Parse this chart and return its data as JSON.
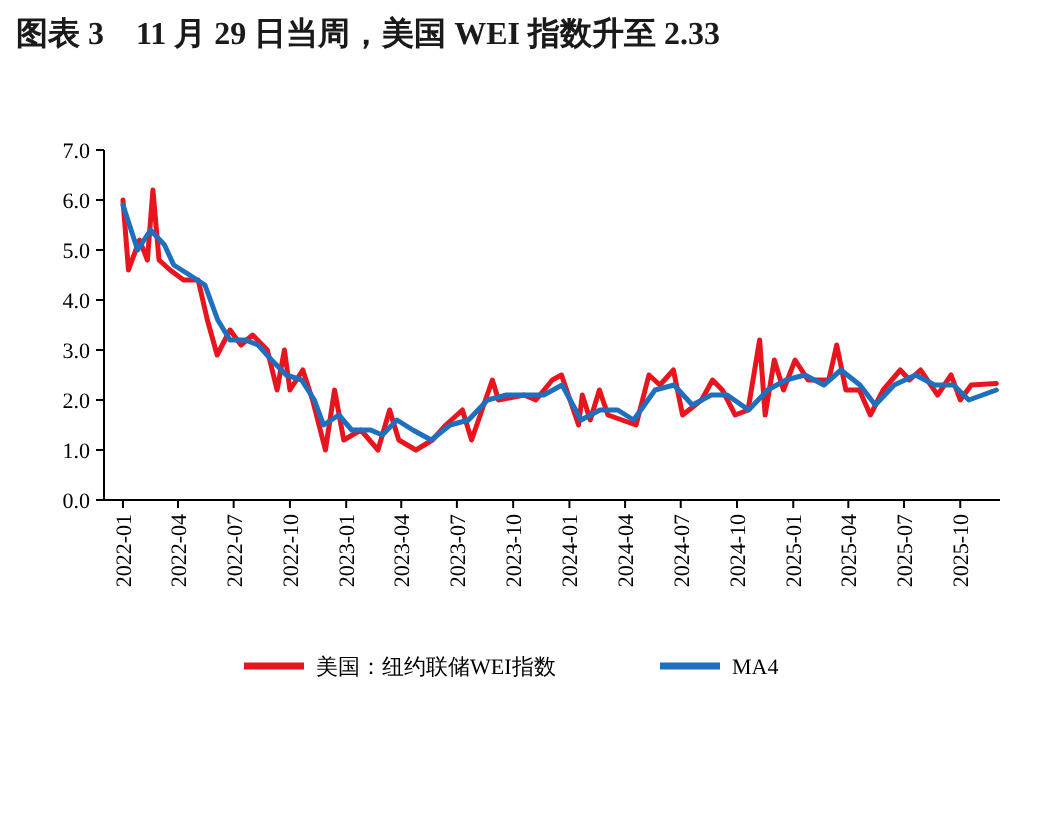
{
  "chart_data": {
    "type": "line",
    "title": "图表 3　11 月 29 日当周，美国 WEI 指数升至 2.33",
    "xlim": [
      "2021-12-01",
      "2025-12-05"
    ],
    "xticks": [
      "2022-01",
      "2022-04",
      "2022-07",
      "2022-10",
      "2023-01",
      "2023-04",
      "2023-07",
      "2023-10",
      "2024-01",
      "2024-04",
      "2024-07",
      "2024-10",
      "2025-01",
      "2025-04",
      "2025-07",
      "2025-10"
    ],
    "ylim": [
      0,
      7
    ],
    "yticks": [
      {
        "value": 0,
        "label": "0.0"
      },
      {
        "value": 1,
        "label": "1.0"
      },
      {
        "value": 2,
        "label": "2.0"
      },
      {
        "value": 3,
        "label": "3.0"
      },
      {
        "value": 4,
        "label": "4.0"
      },
      {
        "value": 5,
        "label": "5.0"
      },
      {
        "value": 6,
        "label": "6.0"
      },
      {
        "value": 7,
        "label": "7.0"
      }
    ],
    "grid": false,
    "legend": "bottom",
    "marker": "none",
    "line_style": "solid",
    "series": [
      {
        "name": "美国：纽约联储WEI指数",
        "color": "#e8141e",
        "x": [
          "2022-01-01",
          "2022-01-10",
          "2022-01-28",
          "2022-02-10",
          "2022-02-19",
          "2022-03-01",
          "2022-03-19",
          "2022-04-10",
          "2022-05-04",
          "2022-05-19",
          "2022-06-04",
          "2022-06-25",
          "2022-07-13",
          "2022-08-01",
          "2022-08-25",
          "2022-09-10",
          "2022-09-22",
          "2022-10-01",
          "2022-10-22",
          "2022-11-07",
          "2022-11-28",
          "2022-12-13",
          "2022-12-28",
          "2023-01-25",
          "2023-02-22",
          "2023-03-13",
          "2023-03-28",
          "2023-04-25",
          "2023-05-22",
          "2023-06-13",
          "2023-07-10",
          "2023-07-25",
          "2023-08-28",
          "2023-09-07",
          "2023-10-19",
          "2023-11-07",
          "2023-12-04",
          "2023-12-19",
          "2024-01-16",
          "2024-01-22",
          "2024-02-04",
          "2024-02-19",
          "2024-03-04",
          "2024-04-19",
          "2024-05-10",
          "2024-05-28",
          "2024-06-19",
          "2024-07-04",
          "2024-08-04",
          "2024-08-22",
          "2024-09-07",
          "2024-09-28",
          "2024-10-19",
          "2024-11-07",
          "2024-11-16",
          "2024-12-01",
          "2024-12-16",
          "2025-01-04",
          "2025-01-25",
          "2025-02-28",
          "2025-03-13",
          "2025-03-28",
          "2025-04-19",
          "2025-05-07",
          "2025-05-28",
          "2025-06-25",
          "2025-07-10",
          "2025-07-28",
          "2025-08-25",
          "2025-09-16",
          "2025-10-01",
          "2025-10-19",
          "2025-11-29"
        ],
        "values": [
          6.0,
          4.6,
          5.2,
          4.8,
          6.2,
          4.8,
          4.6,
          4.4,
          4.4,
          3.6,
          2.9,
          3.4,
          3.1,
          3.3,
          3.0,
          2.2,
          3.0,
          2.2,
          2.6,
          2.0,
          1.0,
          2.2,
          1.2,
          1.4,
          1.0,
          1.8,
          1.2,
          1.0,
          1.2,
          1.5,
          1.8,
          1.2,
          2.4,
          2.0,
          2.1,
          2.0,
          2.4,
          2.5,
          1.5,
          2.1,
          1.6,
          2.2,
          1.7,
          1.5,
          2.5,
          2.3,
          2.6,
          1.7,
          2.0,
          2.4,
          2.2,
          1.7,
          1.8,
          3.2,
          1.7,
          2.8,
          2.2,
          2.8,
          2.4,
          2.4,
          3.1,
          2.2,
          2.2,
          1.7,
          2.2,
          2.6,
          2.4,
          2.6,
          2.1,
          2.5,
          2.0,
          2.3,
          2.33
        ]
      },
      {
        "name": "MA4",
        "color": "#1f6fbf",
        "x": [
          "2022-01-01",
          "2022-01-25",
          "2022-02-15",
          "2022-03-10",
          "2022-03-25",
          "2022-04-20",
          "2022-05-15",
          "2022-06-05",
          "2022-06-25",
          "2022-07-20",
          "2022-08-10",
          "2022-09-01",
          "2022-09-25",
          "2022-10-20",
          "2022-11-10",
          "2022-11-25",
          "2022-12-20",
          "2023-01-10",
          "2023-02-10",
          "2023-03-01",
          "2023-03-25",
          "2023-04-20",
          "2023-05-20",
          "2023-06-20",
          "2023-07-20",
          "2023-08-20",
          "2023-09-20",
          "2023-10-20",
          "2023-11-20",
          "2023-12-20",
          "2024-01-20",
          "2024-02-20",
          "2024-03-20",
          "2024-04-15",
          "2024-05-20",
          "2024-06-20",
          "2024-07-20",
          "2024-08-20",
          "2024-09-15",
          "2024-10-20",
          "2024-11-20",
          "2024-12-20",
          "2025-01-20",
          "2025-02-20",
          "2025-03-20",
          "2025-04-20",
          "2025-05-15",
          "2025-06-15",
          "2025-07-20",
          "2025-08-20",
          "2025-09-20",
          "2025-10-15",
          "2025-11-29"
        ],
        "values": [
          5.9,
          5.0,
          5.4,
          5.1,
          4.7,
          4.5,
          4.3,
          3.6,
          3.2,
          3.2,
          3.1,
          2.8,
          2.5,
          2.4,
          2.0,
          1.5,
          1.7,
          1.4,
          1.4,
          1.3,
          1.6,
          1.4,
          1.2,
          1.5,
          1.6,
          2.0,
          2.1,
          2.1,
          2.1,
          2.3,
          1.6,
          1.8,
          1.8,
          1.6,
          2.2,
          2.3,
          1.9,
          2.1,
          2.1,
          1.8,
          2.2,
          2.4,
          2.5,
          2.3,
          2.6,
          2.3,
          1.9,
          2.3,
          2.5,
          2.3,
          2.3,
          2.0,
          2.2
        ]
      }
    ]
  }
}
